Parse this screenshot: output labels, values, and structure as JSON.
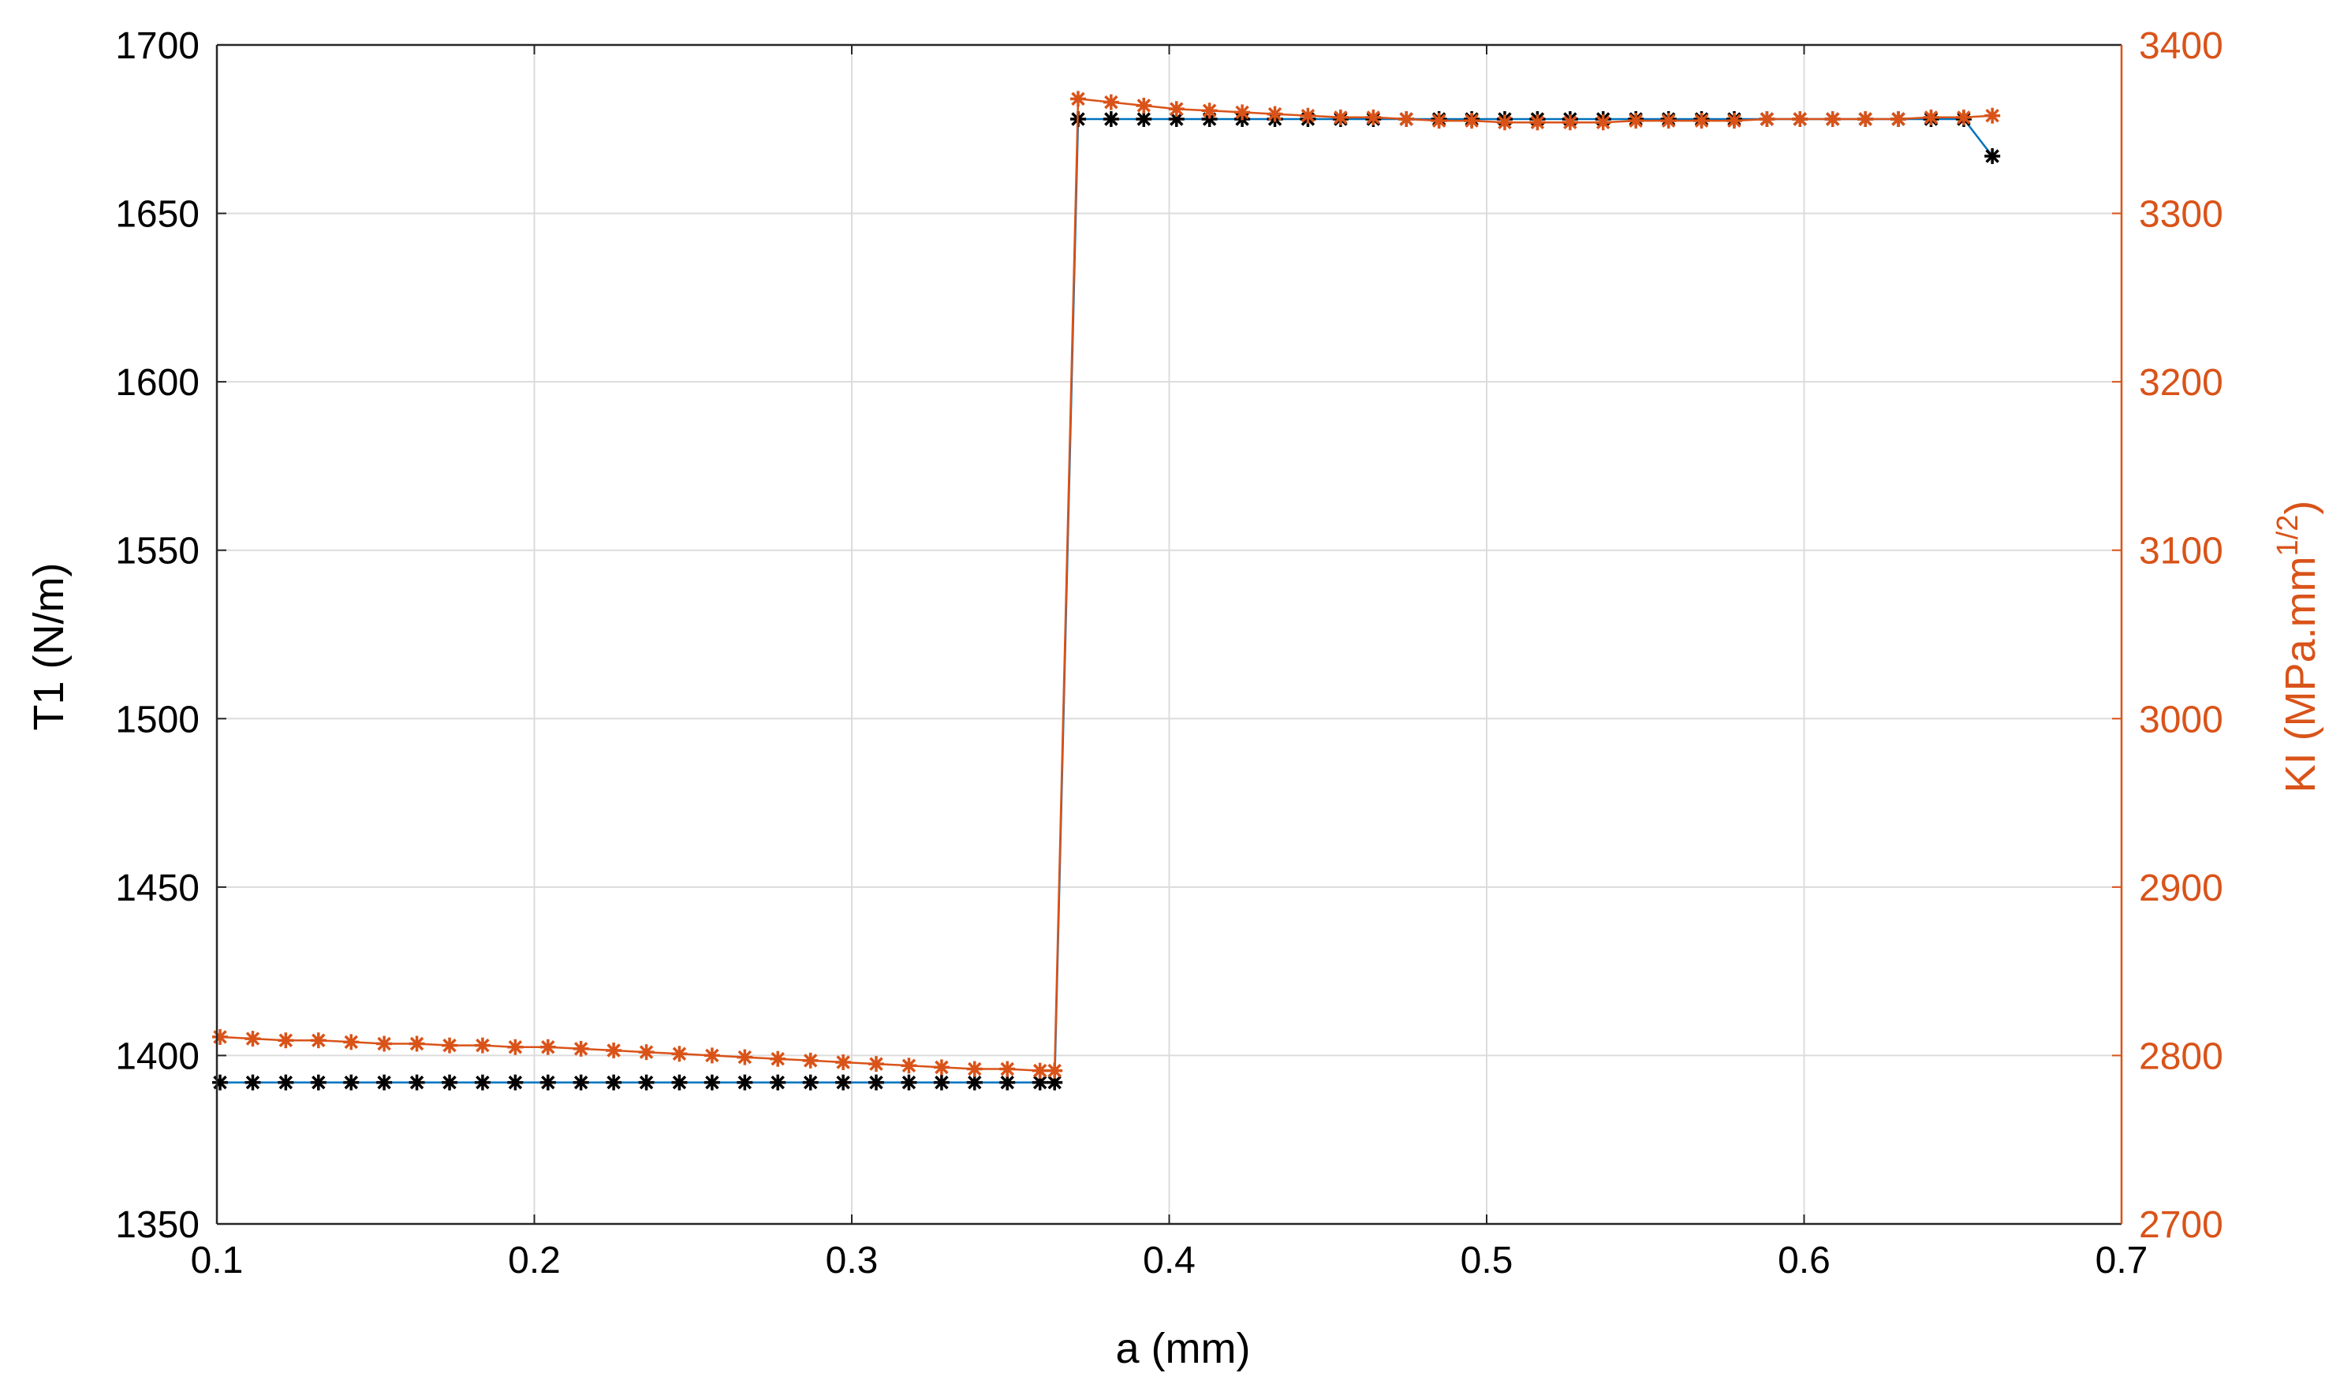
{
  "chart_data": {
    "type": "line",
    "xlabel": "a (mm)",
    "ylabel_left": "T1 (N/m)",
    "ylabel_right_main": "KI (MPa.mm",
    "ylabel_right_sup": "1/2",
    "ylabel_right_close": ")",
    "xlim": [
      0.1,
      0.7
    ],
    "ylim_left": [
      1350,
      1700
    ],
    "ylim_right": [
      2700,
      3400
    ],
    "xticks": [
      "0.1",
      "0.2",
      "0.3",
      "0.4",
      "0.5",
      "0.6",
      "0.7"
    ],
    "yticks_left": [
      "1350",
      "1400",
      "1450",
      "1500",
      "1550",
      "1600",
      "1650",
      "1700"
    ],
    "yticks_right": [
      "2700",
      "2800",
      "2900",
      "3000",
      "3100",
      "3200",
      "3300",
      "3400"
    ],
    "grid": true,
    "colors": {
      "t1_line": "#0072BD",
      "t1_marker": "#000000",
      "ki_line": "#D95319",
      "ki_marker": "#D95319",
      "right_axis": "#D95319",
      "grid": "#dcdcdc"
    },
    "series": [
      {
        "axis": "left",
        "marker": "asterisk",
        "x": [
          0.101,
          0.1113,
          0.1217,
          0.132,
          0.1423,
          0.1527,
          0.163,
          0.1733,
          0.1837,
          0.194,
          0.2043,
          0.2147,
          0.225,
          0.2353,
          0.2457,
          0.256,
          0.2663,
          0.2767,
          0.287,
          0.2973,
          0.3077,
          0.318,
          0.3283,
          0.3387,
          0.349,
          0.3593,
          0.3639,
          0.3713,
          0.3817,
          0.392,
          0.4023,
          0.4127,
          0.423,
          0.4333,
          0.4437,
          0.454,
          0.4643,
          0.4747,
          0.485,
          0.4953,
          0.5057,
          0.516,
          0.5263,
          0.5367,
          0.547,
          0.5573,
          0.5677,
          0.578,
          0.5883,
          0.5987,
          0.609,
          0.6193,
          0.6297,
          0.64,
          0.6503,
          0.6593
        ],
        "y": [
          1392,
          1392,
          1392,
          1392,
          1392,
          1392,
          1392,
          1392,
          1392,
          1392,
          1392,
          1392,
          1392,
          1392,
          1392,
          1392,
          1392,
          1392,
          1392,
          1392,
          1392,
          1392,
          1392,
          1392,
          1392,
          1392,
          1392,
          1678,
          1678,
          1678,
          1678,
          1678,
          1678,
          1678,
          1678,
          1678,
          1678,
          1678,
          1678,
          1678,
          1678,
          1678,
          1678,
          1678,
          1678,
          1678,
          1678,
          1678,
          1678,
          1678,
          1678,
          1678,
          1678,
          1678,
          1678,
          1667
        ]
      },
      {
        "axis": "right",
        "marker": "asterisk",
        "x": [
          0.101,
          0.1113,
          0.1217,
          0.132,
          0.1423,
          0.1527,
          0.163,
          0.1733,
          0.1837,
          0.194,
          0.2043,
          0.2147,
          0.225,
          0.2353,
          0.2457,
          0.256,
          0.2663,
          0.2767,
          0.287,
          0.2973,
          0.3077,
          0.318,
          0.3283,
          0.3387,
          0.349,
          0.3593,
          0.3639,
          0.3713,
          0.3817,
          0.392,
          0.4023,
          0.4127,
          0.423,
          0.4333,
          0.4437,
          0.454,
          0.4643,
          0.4747,
          0.485,
          0.4953,
          0.5057,
          0.516,
          0.5263,
          0.5367,
          0.547,
          0.5573,
          0.5677,
          0.578,
          0.5883,
          0.5987,
          0.609,
          0.6193,
          0.6297,
          0.64,
          0.6503,
          0.6593
        ],
        "y": [
          2811,
          2810,
          2809,
          2809,
          2808,
          2807,
          2807,
          2806,
          2806,
          2805,
          2805,
          2804,
          2803,
          2802,
          2801,
          2800,
          2799,
          2798,
          2797,
          2796,
          2795,
          2794,
          2793,
          2792,
          2792,
          2791,
          2791,
          3368,
          3366,
          3364,
          3362,
          3361,
          3360,
          3359,
          3358,
          3357,
          3357,
          3356,
          3355,
          3355,
          3354,
          3354,
          3354,
          3354,
          3355,
          3355,
          3355,
          3355,
          3356,
          3356,
          3356,
          3356,
          3356,
          3357,
          3357,
          3358
        ]
      }
    ]
  }
}
